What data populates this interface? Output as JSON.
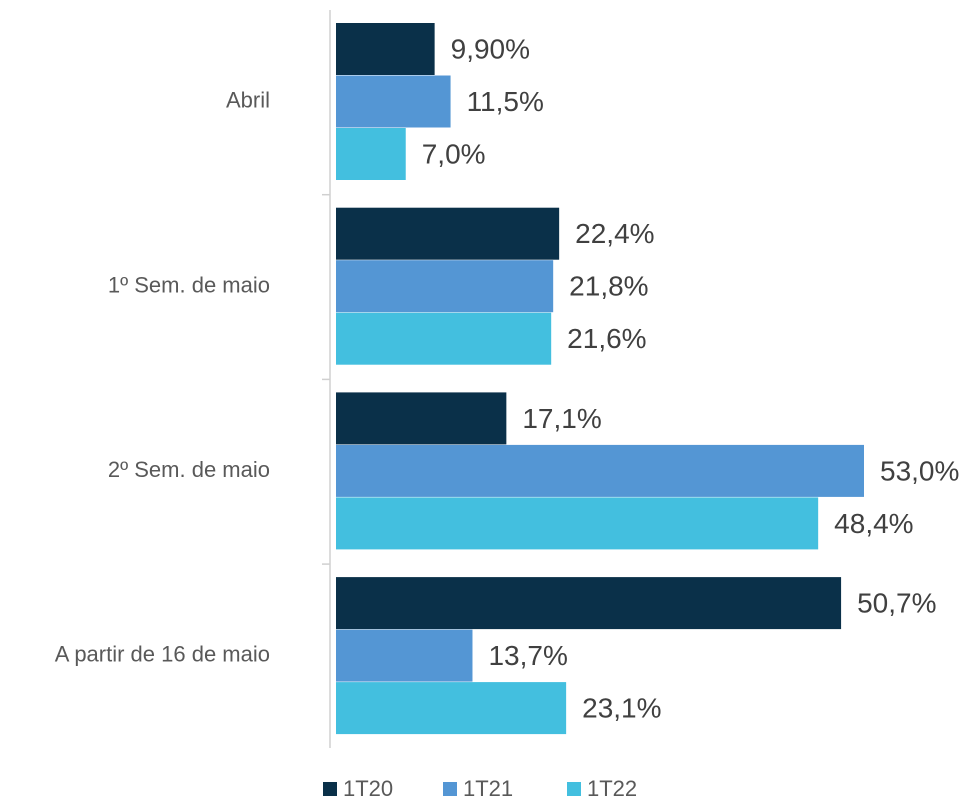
{
  "chart_data": {
    "type": "hbar",
    "categories": [
      "Abril",
      "1º Sem. de maio",
      "2º Sem. de maio",
      "A partir de 16 de maio"
    ],
    "series": [
      {
        "name": "1T20",
        "color": "#0a3049",
        "values": [
          9.9,
          22.4,
          17.1,
          50.7
        ],
        "value_labels": [
          "9,90%",
          "22,4%",
          "17,1%",
          "50,7%"
        ]
      },
      {
        "name": "1T21",
        "color": "#5496d4",
        "values": [
          11.5,
          21.8,
          53.0,
          13.7
        ],
        "value_labels": [
          "11,5%",
          "21,8%",
          "53,0%",
          "13,7%"
        ]
      },
      {
        "name": "1T22",
        "color": "#43bfdf",
        "values": [
          7.0,
          21.6,
          48.4,
          23.1
        ],
        "value_labels": [
          "7,0%",
          "21,6%",
          "48,4%",
          "23,1%"
        ]
      }
    ],
    "legend": "bottom"
  }
}
